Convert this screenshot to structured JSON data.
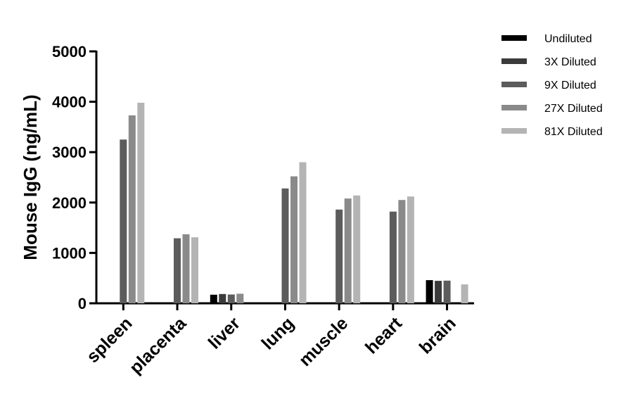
{
  "chart_data": {
    "type": "bar",
    "ylabel": "Mouse IgG (ng/mL)",
    "xlabel": "",
    "ylim": [
      0,
      5000
    ],
    "yticks": [
      0,
      1000,
      2000,
      3000,
      4000,
      5000
    ],
    "categories": [
      "spleen",
      "placenta",
      "liver",
      "lung",
      "muscle",
      "heart",
      "brain"
    ],
    "legend_position": "top-right",
    "grid": false,
    "series": [
      {
        "name": "Undiluted",
        "color": "#000000",
        "values": [
          null,
          null,
          170,
          null,
          null,
          null,
          460
        ]
      },
      {
        "name": "3X Diluted",
        "color": "#3a3a3a",
        "values": [
          null,
          null,
          185,
          null,
          null,
          null,
          445
        ]
      },
      {
        "name": "9X Diluted",
        "color": "#5c5c5c",
        "values": [
          3250,
          1290,
          175,
          2280,
          1860,
          1820,
          450
        ]
      },
      {
        "name": "27X Diluted",
        "color": "#8a8a8a",
        "values": [
          3730,
          1370,
          190,
          2520,
          2080,
          2050,
          null
        ]
      },
      {
        "name": "81X Diluted",
        "color": "#b4b4b4",
        "values": [
          3980,
          1310,
          null,
          2800,
          2140,
          2120,
          375
        ]
      }
    ]
  }
}
